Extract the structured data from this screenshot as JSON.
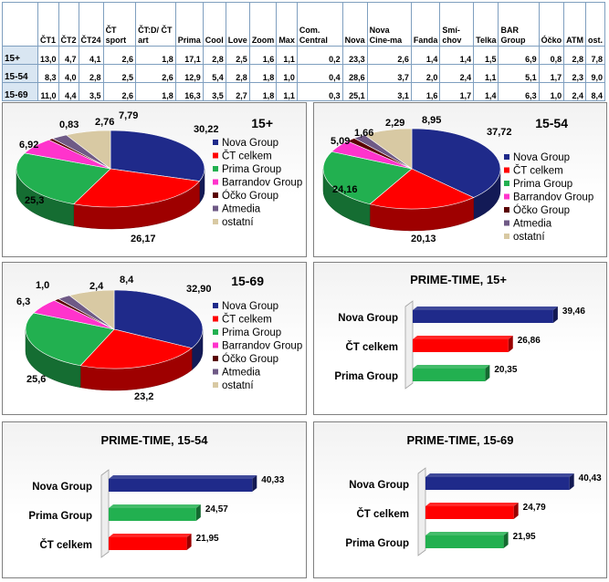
{
  "table": {
    "headers": [
      "",
      "ČT1",
      "ČT2",
      "ČT24",
      "ČT sport",
      "ČT:D/ ČT art",
      "Prima",
      "Cool",
      "Love",
      "Zoom",
      "Max",
      "Com. Central",
      "Nova",
      "Nova Cine-ma",
      "Fanda",
      "Smí-chov",
      "Telka",
      "BAR Group",
      "Óčko",
      "ATM",
      "ost."
    ],
    "rows": [
      [
        "15+",
        "13,0",
        "4,7",
        "4,1",
        "2,6",
        "1,8",
        "17,1",
        "2,8",
        "2,5",
        "1,6",
        "1,1",
        "0,2",
        "23,3",
        "2,6",
        "1,4",
        "1,4",
        "1,5",
        "6,9",
        "0,8",
        "2,8",
        "7,8"
      ],
      [
        "15-54",
        "8,3",
        "4,0",
        "2,8",
        "2,5",
        "2,6",
        "12,9",
        "5,4",
        "2,8",
        "1,8",
        "1,0",
        "0,4",
        "28,6",
        "3,7",
        "2,0",
        "2,4",
        "1,1",
        "5,1",
        "1,7",
        "2,3",
        "9,0"
      ],
      [
        "15-69",
        "11,0",
        "4,4",
        "3,5",
        "2,6",
        "1,8",
        "16,3",
        "3,5",
        "2,7",
        "1,8",
        "1,1",
        "0,3",
        "25,1",
        "3,1",
        "1,6",
        "1,7",
        "1,4",
        "6,3",
        "1,0",
        "2,4",
        "8,4"
      ]
    ]
  },
  "colors": {
    "nova": "#1f2a8a",
    "ct": "#ff0000",
    "prima": "#22b050",
    "barrandov": "#ff33cc",
    "ocko": "#5a0000",
    "atmedia": "#6f5a86",
    "ostatni": "#d8c9a3",
    "accent_border": "#7f9fbf"
  },
  "chart_data": [
    {
      "type": "pie",
      "title": "15+",
      "labels": [
        "Nova Group",
        "ČT celkem",
        "Prima Group",
        "Barrandov Group",
        "Óčko Group",
        "Atmedia",
        "ostatní"
      ],
      "values": [
        30.22,
        26.17,
        25.3,
        6.92,
        0.83,
        2.76,
        7.79
      ],
      "value_labels": [
        "30,22",
        "26,17",
        "25,3",
        "6,92",
        "0,83",
        "2,76",
        "7,79"
      ],
      "legend": "right"
    },
    {
      "type": "pie",
      "title": "15-54",
      "labels": [
        "Nova Group",
        "ČT celkem",
        "Prima Group",
        "Barrandov Group",
        "Óčko Group",
        "Atmedia",
        "ostatní"
      ],
      "values": [
        37.72,
        20.13,
        24.16,
        5.09,
        1.66,
        2.29,
        8.95
      ],
      "value_labels": [
        "37,72",
        "20,13",
        "24,16",
        "5,09",
        "1,66",
        "2,29",
        "8,95"
      ],
      "legend": "right"
    },
    {
      "type": "pie",
      "title": "15-69",
      "labels": [
        "Nova Group",
        "ČT celkem",
        "Prima Group",
        "Barrandov Group",
        "Óčko Group",
        "Atmedia",
        "ostatní"
      ],
      "values": [
        32.9,
        23.2,
        25.6,
        6.3,
        1.0,
        2.4,
        8.4
      ],
      "value_labels": [
        "32,90",
        "23,2",
        "25,6",
        "6,3",
        "1,0",
        "2,4",
        "8,4"
      ],
      "legend": "right"
    },
    {
      "type": "bar",
      "orientation": "horizontal",
      "title": "PRIME-TIME, 15+",
      "categories": [
        "Nova Group",
        "ČT celkem",
        "Prima Group"
      ],
      "values": [
        39.46,
        26.86,
        20.35
      ],
      "value_labels": [
        "39,46",
        "26,86",
        "20,35"
      ],
      "series_colors": [
        "nova",
        "ct",
        "prima"
      ]
    },
    {
      "type": "bar",
      "orientation": "horizontal",
      "title": "PRIME-TIME, 15-54",
      "categories": [
        "Nova Group",
        "Prima Group",
        "ČT celkem"
      ],
      "values": [
        40.33,
        24.57,
        21.95
      ],
      "value_labels": [
        "40,33",
        "24,57",
        "21,95"
      ],
      "series_colors": [
        "nova",
        "prima",
        "ct"
      ]
    },
    {
      "type": "bar",
      "orientation": "horizontal",
      "title": "PRIME-TIME, 15-69",
      "categories": [
        "Nova Group",
        "ČT celkem",
        "Prima Group"
      ],
      "values": [
        40.43,
        24.79,
        21.95
      ],
      "value_labels": [
        "40,43",
        "24,79",
        "21,95"
      ],
      "series_colors": [
        "nova",
        "ct",
        "prima"
      ]
    }
  ]
}
